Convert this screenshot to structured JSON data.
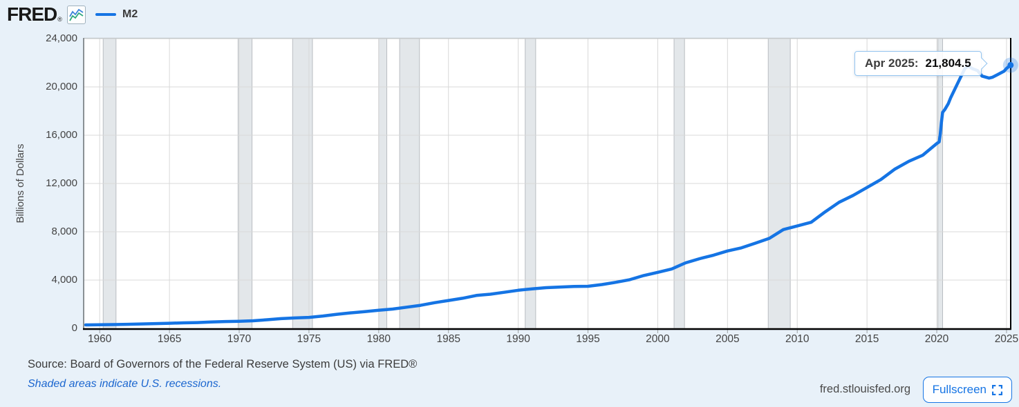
{
  "header": {
    "logo_text": "FRED",
    "logo_registered": "®",
    "legend": {
      "label": "M2",
      "color": "#1574e4"
    }
  },
  "chart": {
    "y_axis_title": "Billions of Dollars",
    "x_tick_labels": [
      "1960",
      "1965",
      "1970",
      "1975",
      "1980",
      "1985",
      "1990",
      "1995",
      "2000",
      "2005",
      "2010",
      "2015",
      "2020",
      "2025"
    ],
    "y_tick_labels": [
      "0",
      "4,000",
      "8,000",
      "12,000",
      "16,000",
      "20,000",
      "24,000"
    ]
  },
  "chart_data": {
    "type": "line",
    "title": "M2",
    "ylabel": "Billions of Dollars",
    "xlim": [
      1958.9,
      2025.3
    ],
    "ylim": [
      0,
      24000
    ],
    "x_ticks": [
      1960,
      1965,
      1970,
      1975,
      1980,
      1985,
      1990,
      1995,
      2000,
      2005,
      2010,
      2015,
      2020,
      2025
    ],
    "y_ticks": [
      0,
      4000,
      8000,
      12000,
      16000,
      20000,
      24000
    ],
    "grid": true,
    "recession_bands": [
      [
        1960.25,
        1961.17
      ],
      [
        1969.92,
        1970.92
      ],
      [
        1973.83,
        1975.25
      ],
      [
        1980.0,
        1980.58
      ],
      [
        1981.5,
        1982.92
      ],
      [
        1990.5,
        1991.25
      ],
      [
        2001.17,
        2001.92
      ],
      [
        2007.92,
        2009.5
      ],
      [
        2020.08,
        2020.42
      ]
    ],
    "series": [
      {
        "name": "M2",
        "color": "#1574e4",
        "x": [
          1959,
          1960,
          1961,
          1962,
          1963,
          1964,
          1965,
          1966,
          1967,
          1968,
          1969,
          1970,
          1971,
          1972,
          1973,
          1974,
          1975,
          1976,
          1977,
          1978,
          1979,
          1980,
          1981,
          1982,
          1983,
          1984,
          1985,
          1986,
          1987,
          1988,
          1989,
          1990,
          1991,
          1992,
          1993,
          1994,
          1995,
          1996,
          1997,
          1998,
          1999,
          2000,
          2001,
          2002,
          2003,
          2004,
          2005,
          2006,
          2007,
          2008,
          2009,
          2010,
          2011,
          2012,
          2013,
          2014,
          2015,
          2016,
          2017,
          2018,
          2019,
          2020.0,
          2020.17,
          2020.25,
          2020.33,
          2020.42,
          2020.58,
          2020.83,
          2021.0,
          2021.5,
          2022.0,
          2022.25,
          2022.58,
          2022.92,
          2023.25,
          2023.75,
          2024.0,
          2024.33,
          2024.83,
          2025.0,
          2025.29
        ],
        "values": [
          287,
          298,
          312,
          336,
          363,
          393,
          425,
          459,
          480,
          525,
          567,
          590,
          628,
          713,
          805,
          861,
          909,
          1023,
          1164,
          1287,
          1389,
          1497,
          1600,
          1756,
          1906,
          2124,
          2306,
          2492,
          2728,
          2826,
          2988,
          3153,
          3272,
          3372,
          3424,
          3475,
          3486,
          3630,
          3818,
          4032,
          4379,
          4641,
          4921,
          5430,
          5774,
          6062,
          6412,
          6669,
          7058,
          7458,
          8181,
          8482,
          8790,
          9649,
          10443,
          11014,
          11671,
          12330,
          13197,
          13839,
          14350,
          15307,
          15446,
          16080,
          17023,
          17890,
          18125,
          18625,
          19107,
          20305,
          21494,
          21740,
          21500,
          21358,
          20900,
          20730,
          20806,
          20998,
          21311,
          21533,
          21804.5
        ]
      }
    ],
    "last_point": {
      "x": 2025.29,
      "y": 21804.5,
      "label": "Apr 2025",
      "value_label": "21,804.5"
    }
  },
  "tooltip": {
    "date_label": "Apr 2025:",
    "value": "21,804.5"
  },
  "footer": {
    "source_text": "Source: Board of Governors of the Federal Reserve System (US) via FRED®",
    "recessions_note": "Shaded areas indicate U.S. recessions.",
    "site_text": "fred.stlouisfed.org",
    "fullscreen_label": "Fullscreen"
  },
  "colors": {
    "accent_blue": "#1574e4",
    "page_bg": "#e8f1f9",
    "plot_bg": "#ffffff",
    "gridline": "#d8d8d8",
    "recession_band": "#e3e7ea",
    "recession_band_edge": "#b9bdc1",
    "marker_halo": "rgba(21,116,228,0.25)",
    "border_top": "#c4c8ca",
    "border_left": "#8a9094",
    "border_axis": "#000000",
    "tooltip_border": "#94c5f0",
    "link_blue": "#1b66cf"
  }
}
